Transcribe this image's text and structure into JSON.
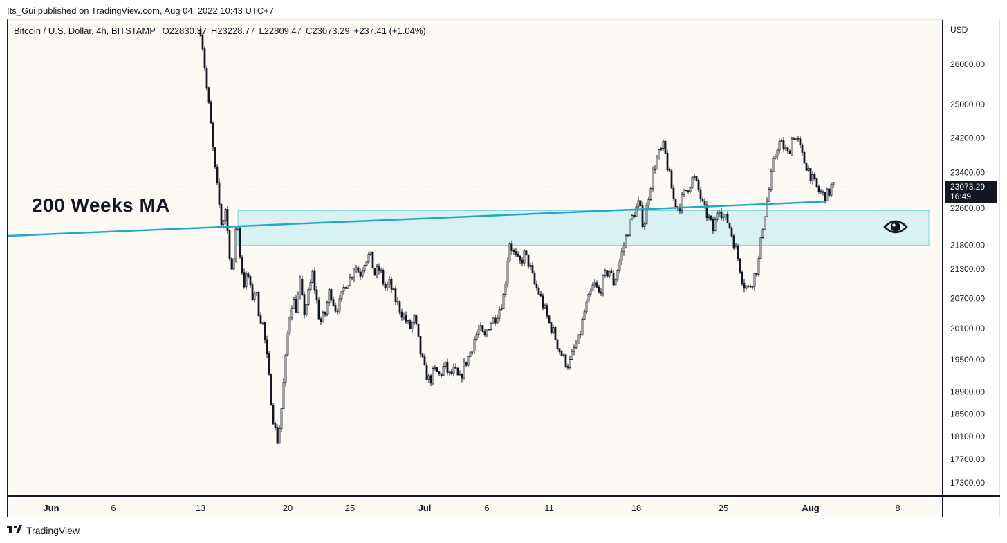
{
  "header": {
    "publisher": "Its_Gui published on TradingView.com, Aug 04, 2022 10:43 UTC+7"
  },
  "legend": {
    "symbol": "Bitcoin / U.S. Dollar, 4h, BITSTAMP",
    "open": "O22830.37",
    "high": "H23228.77",
    "low": "L22809.47",
    "close": "C23073.29",
    "change": "+237.41 (+1.04%)"
  },
  "currency": "USD",
  "price_tag": {
    "price": "23073.29",
    "countdown": "16:49"
  },
  "annotation": {
    "text": "200 Weeks MA",
    "icon": "eye-icon"
  },
  "footer": {
    "brand": "TradingView",
    "logo": "tradingview-logo"
  },
  "colors": {
    "background": "#fdfaf6",
    "candles": "#131722",
    "ma_line": "#22a7c9",
    "zone_fill": "#d4eef2",
    "zone_border": "#7fd0e0"
  },
  "chart_data": {
    "type": "candlestick",
    "timeframe": "4h",
    "ylim": [
      16900,
      27300
    ],
    "y_ticks": [
      26000,
      25000,
      24200,
      23400,
      22600,
      21800,
      21300,
      20700,
      20100,
      19500,
      18900,
      18500,
      18100,
      17700,
      17300
    ],
    "y_tick_labels": [
      "26000.00",
      "25000.00",
      "24200.00",
      "23400.00",
      "22600.00",
      "21800.00",
      "21300.00",
      "20700.00",
      "20100.00",
      "19500.00",
      "18900.00",
      "18500.00",
      "18100.00",
      "17700.00",
      "17300.00"
    ],
    "x_ticks": [
      {
        "label": "Jun",
        "day": 1,
        "bold": true
      },
      {
        "label": "6",
        "day": 6,
        "bold": false
      },
      {
        "label": "13",
        "day": 13,
        "bold": false
      },
      {
        "label": "20",
        "day": 20,
        "bold": false
      },
      {
        "label": "25",
        "day": 25,
        "bold": false
      },
      {
        "label": "Jul",
        "day": 31,
        "bold": true
      },
      {
        "label": "6",
        "day": 36,
        "bold": false
      },
      {
        "label": "11",
        "day": 41,
        "bold": false
      },
      {
        "label": "18",
        "day": 48,
        "bold": false
      },
      {
        "label": "25",
        "day": 55,
        "bold": false
      },
      {
        "label": "Aug",
        "day": 62,
        "bold": true
      },
      {
        "label": "8",
        "day": 69,
        "bold": false
      }
    ],
    "day_index_note": "days counted from May 31 (Jun 1 = 1, Jul 1 = 31, Aug 1 = 62)",
    "last_price": 23073.29,
    "ma_line": {
      "name": "200 Weeks MA",
      "points": [
        [
          -2.5,
          22000
        ],
        [
          63.3,
          22750
        ]
      ]
    },
    "zone": {
      "day_start": 16,
      "day_end": 71.5,
      "price_low": 21800,
      "price_high": 22550
    },
    "waypoints": [
      [
        13.0,
        26900
      ],
      [
        13.2,
        26400
      ],
      [
        13.5,
        25400
      ],
      [
        13.8,
        24600
      ],
      [
        14.1,
        23600
      ],
      [
        14.4,
        22900
      ],
      [
        14.7,
        22200
      ],
      [
        15.0,
        22600
      ],
      [
        15.3,
        21700
      ],
      [
        15.6,
        21100
      ],
      [
        15.9,
        22500
      ],
      [
        16.2,
        21500
      ],
      [
        16.5,
        21000
      ],
      [
        16.8,
        21200
      ],
      [
        17.1,
        20700
      ],
      [
        17.4,
        20900
      ],
      [
        17.7,
        20400
      ],
      [
        18.0,
        20200
      ],
      [
        18.3,
        19600
      ],
      [
        18.6,
        18900
      ],
      [
        18.9,
        18300
      ],
      [
        19.2,
        18000
      ],
      [
        19.5,
        18600
      ],
      [
        19.8,
        19400
      ],
      [
        20.1,
        20300
      ],
      [
        20.4,
        20700
      ],
      [
        20.7,
        20500
      ],
      [
        21.0,
        21000
      ],
      [
        21.3,
        20400
      ],
      [
        21.6,
        20700
      ],
      [
        22.0,
        21200
      ],
      [
        22.3,
        20700
      ],
      [
        22.6,
        20200
      ],
      [
        23.0,
        20400
      ],
      [
        23.4,
        20900
      ],
      [
        23.8,
        20500
      ],
      [
        24.2,
        20600
      ],
      [
        24.6,
        21000
      ],
      [
        25.0,
        21100
      ],
      [
        25.4,
        21400
      ],
      [
        25.8,
        21200
      ],
      [
        26.2,
        21500
      ],
      [
        26.6,
        21600
      ],
      [
        27.0,
        21200
      ],
      [
        27.4,
        21300
      ],
      [
        27.8,
        20900
      ],
      [
        28.2,
        21000
      ],
      [
        28.6,
        20700
      ],
      [
        29.0,
        20500
      ],
      [
        29.4,
        20300
      ],
      [
        29.8,
        20100
      ],
      [
        30.2,
        20300
      ],
      [
        30.6,
        19700
      ],
      [
        31.0,
        19300
      ],
      [
        31.4,
        19100
      ],
      [
        31.8,
        19300
      ],
      [
        32.2,
        19200
      ],
      [
        32.6,
        19400
      ],
      [
        33.0,
        19200
      ],
      [
        33.4,
        19300
      ],
      [
        33.8,
        19100
      ],
      [
        34.2,
        19400
      ],
      [
        34.6,
        19600
      ],
      [
        35.0,
        19900
      ],
      [
        35.4,
        20100
      ],
      [
        35.8,
        19900
      ],
      [
        36.2,
        20200
      ],
      [
        36.6,
        20300
      ],
      [
        37.0,
        20500
      ],
      [
        37.4,
        20800
      ],
      [
        37.8,
        21900
      ],
      [
        38.2,
        21600
      ],
      [
        38.6,
        21400
      ],
      [
        39.0,
        21600
      ],
      [
        39.4,
        21400
      ],
      [
        39.8,
        21000
      ],
      [
        40.2,
        20800
      ],
      [
        40.6,
        20500
      ],
      [
        41.0,
        20200
      ],
      [
        41.4,
        20000
      ],
      [
        41.8,
        19700
      ],
      [
        42.2,
        19500
      ],
      [
        42.6,
        19400
      ],
      [
        43.0,
        19700
      ],
      [
        43.4,
        19900
      ],
      [
        43.8,
        20400
      ],
      [
        44.2,
        20700
      ],
      [
        44.6,
        21000
      ],
      [
        45.0,
        20800
      ],
      [
        45.4,
        21100
      ],
      [
        45.8,
        21300
      ],
      [
        46.2,
        21000
      ],
      [
        46.6,
        21400
      ],
      [
        47.0,
        21800
      ],
      [
        47.4,
        22200
      ],
      [
        47.8,
        22500
      ],
      [
        48.2,
        22700
      ],
      [
        48.6,
        22200
      ],
      [
        49.0,
        22900
      ],
      [
        49.4,
        23500
      ],
      [
        49.8,
        23800
      ],
      [
        50.2,
        24000
      ],
      [
        50.6,
        23400
      ],
      [
        51.0,
        22800
      ],
      [
        51.4,
        22600
      ],
      [
        51.8,
        22900
      ],
      [
        52.2,
        23100
      ],
      [
        52.6,
        23300
      ],
      [
        53.0,
        23000
      ],
      [
        53.4,
        22600
      ],
      [
        53.8,
        22400
      ],
      [
        54.2,
        22100
      ],
      [
        54.6,
        22700
      ],
      [
        55.0,
        22400
      ],
      [
        55.4,
        22300
      ],
      [
        55.8,
        21900
      ],
      [
        56.2,
        21500
      ],
      [
        56.6,
        21000
      ],
      [
        57.0,
        20900
      ],
      [
        57.4,
        21100
      ],
      [
        57.8,
        21400
      ],
      [
        58.2,
        22300
      ],
      [
        58.6,
        22900
      ],
      [
        59.0,
        23600
      ],
      [
        59.4,
        24100
      ],
      [
        59.8,
        24000
      ],
      [
        60.2,
        23800
      ],
      [
        60.6,
        24300
      ],
      [
        61.0,
        24100
      ],
      [
        61.4,
        23700
      ],
      [
        61.8,
        23500
      ],
      [
        62.2,
        23200
      ],
      [
        62.6,
        23000
      ],
      [
        63.0,
        22900
      ],
      [
        63.4,
        22900
      ],
      [
        63.7,
        23100
      ],
      [
        63.9,
        23073
      ]
    ]
  }
}
